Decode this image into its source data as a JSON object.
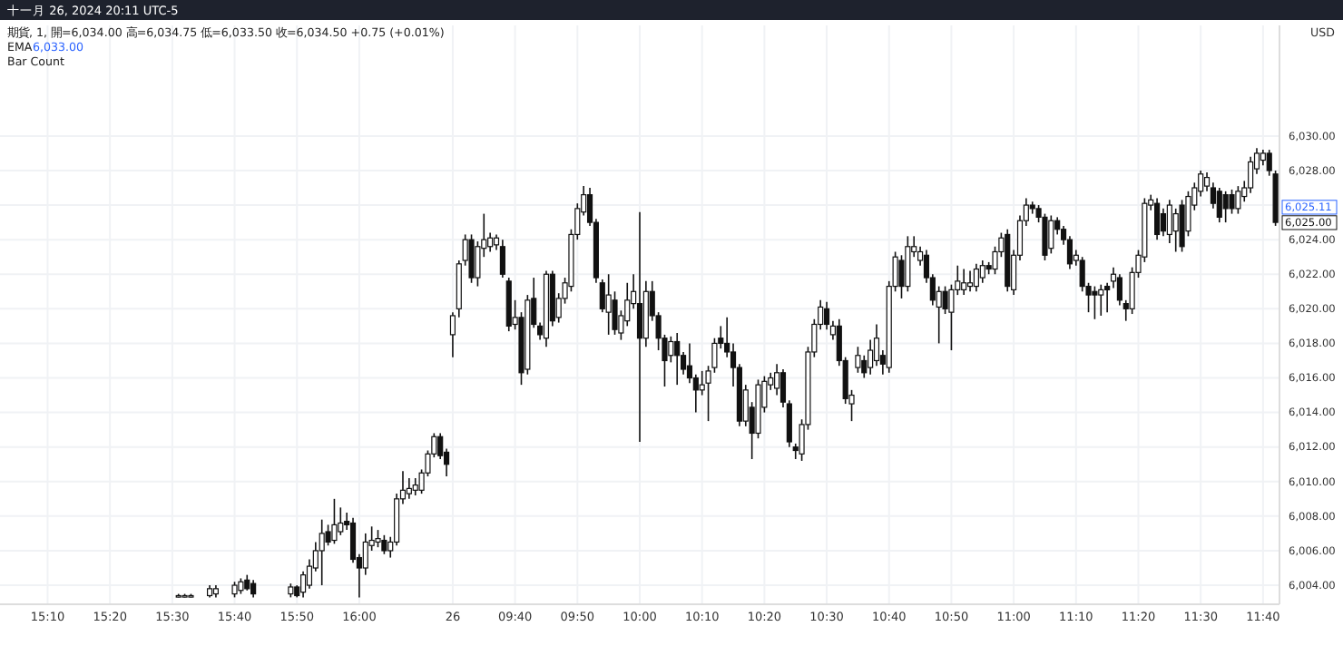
{
  "chart_data": {
    "type": "candlestick",
    "title": "十一月 26, 2024 20:11 UTC-5",
    "subtitle": "期貨, 1, 開=6,034.00 高=6,034.75 低=6,033.50 收=6,034.50 +0.75 (+0.01%)",
    "annotations": [
      "EMA",
      "6,033.00",
      "Bar Count",
      "USD",
      "6,025.11",
      "6,025.00"
    ],
    "categories": [
      null,
      null,
      null,
      null,
      null,
      null,
      null,
      "15:10",
      null,
      null,
      null,
      null,
      null,
      null,
      null,
      null,
      null,
      "15:20",
      null,
      null,
      null,
      null,
      null,
      null,
      null,
      null,
      null,
      "15:30",
      null,
      null,
      null,
      null,
      null,
      null,
      null,
      null,
      null,
      "15:40",
      null,
      null,
      null,
      null,
      null,
      null,
      null,
      null,
      null,
      "15:50",
      null,
      null,
      null,
      null,
      null,
      null,
      null,
      null,
      null,
      "16:00",
      null,
      null,
      null,
      null,
      null,
      null,
      null,
      null,
      null,
      null,
      null,
      null,
      null,
      null,
      "26",
      null,
      null,
      null,
      null,
      null,
      null,
      null,
      null,
      null,
      "09:40",
      null,
      null,
      null,
      null,
      null,
      null,
      null,
      null,
      null,
      "09:50",
      null,
      null,
      null,
      null,
      null,
      null,
      null,
      null,
      null,
      "10:00",
      null,
      null,
      null,
      null,
      null,
      null,
      null,
      null,
      null,
      "10:10",
      null,
      null,
      null,
      null,
      null,
      null,
      null,
      null,
      null,
      "10:20",
      null,
      null,
      null,
      null,
      null,
      null,
      null,
      null,
      null,
      "10:30",
      null,
      null,
      null,
      null,
      null,
      null,
      null,
      null,
      null,
      "10:40",
      null,
      null,
      null,
      null,
      null,
      null,
      null,
      null,
      null,
      "10:50",
      null,
      null,
      null,
      null,
      null,
      null,
      null,
      null,
      null,
      "11:00",
      null,
      null,
      null,
      null,
      null,
      null,
      null,
      null,
      null,
      "11:10",
      null,
      null,
      null,
      null,
      null,
      null,
      null,
      null,
      null,
      "11:20",
      null,
      null,
      null,
      null,
      null,
      null,
      null,
      null,
      null,
      "11:30",
      null,
      null,
      null,
      null,
      null,
      null,
      null,
      null,
      null,
      "11:40",
      null,
      null
    ],
    "ohlc": [
      null,
      null,
      null,
      null,
      null,
      null,
      null,
      null,
      null,
      null,
      null,
      null,
      null,
      null,
      null,
      null,
      null,
      null,
      null,
      null,
      null,
      null,
      null,
      null,
      null,
      null,
      null,
      null,
      [
        6003.4,
        6003.5,
        6003.3,
        6003.4
      ],
      [
        6003.4,
        6003.5,
        6003.3,
        6003.4
      ],
      [
        6003.4,
        6003.5,
        6003.3,
        6003.4
      ],
      null,
      null,
      [
        6003.4,
        6004.0,
        6003.3,
        6003.8
      ],
      [
        6003.5,
        6004.0,
        6003.3,
        6003.8
      ],
      null,
      null,
      [
        6003.5,
        6004.2,
        6003.3,
        6004.0
      ],
      [
        6003.7,
        6004.4,
        6003.5,
        6004.2
      ],
      [
        6004.3,
        6004.6,
        6003.7,
        6003.8
      ],
      [
        6004.1,
        6004.3,
        6003.3,
        6003.5
      ],
      null,
      null,
      null,
      null,
      null,
      [
        6003.5,
        6004.1,
        6003.3,
        6003.9
      ],
      [
        6003.9,
        6004.0,
        6003.3,
        6003.4
      ],
      [
        6003.6,
        6004.8,
        6003.3,
        6004.6
      ],
      [
        6004.0,
        6005.5,
        6003.8,
        6005.1
      ],
      [
        6005.0,
        6006.5,
        6004.8,
        6006.0
      ],
      [
        6006.0,
        6007.8,
        6004.0,
        6007.0
      ],
      [
        6007.1,
        6007.5,
        6006.3,
        6006.5
      ],
      [
        6006.6,
        6009.0,
        6006.4,
        6007.5
      ],
      [
        6007.1,
        6008.5,
        6006.9,
        6007.6
      ],
      [
        6007.7,
        6008.2,
        6007.2,
        6007.5
      ],
      [
        6007.6,
        6007.9,
        6005.3,
        6005.5
      ],
      [
        6005.6,
        6005.8,
        6003.3,
        6005.0
      ],
      [
        6005.0,
        6007.0,
        6004.6,
        6006.5
      ],
      [
        6006.3,
        6007.4,
        6006.0,
        6006.6
      ],
      [
        6006.5,
        6007.2,
        6006.2,
        6006.7
      ],
      [
        6006.6,
        6006.9,
        6005.8,
        6006.0
      ],
      [
        6006.0,
        6006.8,
        6005.6,
        6006.5
      ],
      [
        6006.5,
        6009.3,
        6006.3,
        6009.0
      ],
      [
        6009.0,
        6010.6,
        6008.7,
        6009.5
      ],
      [
        6009.3,
        6010.2,
        6009.0,
        6009.6
      ],
      [
        6009.5,
        6010.2,
        6009.2,
        6009.8
      ],
      [
        6009.5,
        6010.7,
        6009.3,
        6010.5
      ],
      [
        6010.5,
        6011.8,
        6010.3,
        6011.6
      ],
      [
        6011.6,
        6012.8,
        6011.4,
        6012.6
      ],
      [
        6012.6,
        6012.8,
        6011.3,
        6011.5
      ],
      [
        6011.7,
        6011.9,
        6010.3,
        6011.0
      ],
      [
        6018.5,
        6019.8,
        6017.2,
        6019.6
      ],
      [
        6020.0,
        6022.8,
        6019.5,
        6022.6
      ],
      [
        6022.8,
        6024.3,
        6022.5,
        6024.0
      ],
      [
        6024.0,
        6024.3,
        6021.5,
        6021.8
      ],
      [
        6021.8,
        6023.9,
        6021.3,
        6023.6
      ],
      [
        6023.5,
        6025.5,
        6023.0,
        6024.0
      ],
      [
        6023.6,
        6024.4,
        6023.3,
        6024.1
      ],
      [
        6023.7,
        6024.3,
        6023.4,
        6024.1
      ],
      [
        6023.6,
        6024.0,
        6021.8,
        6022.0
      ],
      [
        6021.6,
        6021.8,
        6018.7,
        6019.0
      ],
      [
        6019.1,
        6020.5,
        6018.8,
        6019.5
      ],
      [
        6019.5,
        6019.8,
        6015.6,
        6016.3
      ],
      [
        6016.5,
        6020.8,
        6016.2,
        6020.5
      ],
      [
        6020.6,
        6021.8,
        6018.9,
        6019.1
      ],
      [
        6019.0,
        6019.2,
        6018.2,
        6018.5
      ],
      [
        6018.3,
        6022.2,
        6017.8,
        6022.0
      ],
      [
        6022.0,
        6022.2,
        6019.0,
        6019.3
      ],
      [
        6019.5,
        6020.9,
        6019.2,
        6020.6
      ],
      [
        6020.6,
        6021.8,
        6020.3,
        6021.5
      ],
      [
        6021.3,
        6024.6,
        6021.0,
        6024.3
      ],
      [
        6024.3,
        6026.1,
        6024.0,
        6025.8
      ],
      [
        6025.6,
        6027.1,
        6025.4,
        6026.6
      ],
      [
        6026.6,
        6027.0,
        6024.8,
        6025.0
      ],
      [
        6025.0,
        6025.2,
        6021.5,
        6021.8
      ],
      [
        6021.5,
        6021.7,
        6019.8,
        6020.0
      ],
      [
        6019.8,
        6022.0,
        6018.5,
        6020.8
      ],
      [
        6020.5,
        6021.0,
        6018.5,
        6018.8
      ],
      [
        6018.6,
        6019.9,
        6018.2,
        6019.6
      ],
      [
        6019.3,
        6021.5,
        6019.0,
        6020.5
      ],
      [
        6020.3,
        6022.0,
        6020.0,
        6021.0
      ],
      [
        6020.3,
        6025.6,
        6012.3,
        6018.3
      ],
      [
        6018.3,
        6021.6,
        6017.8,
        6021.0
      ],
      [
        6021.0,
        6021.6,
        6019.3,
        6019.6
      ],
      [
        6019.6,
        6019.8,
        6017.6,
        6018.3
      ],
      [
        6018.3,
        6018.5,
        6015.5,
        6017.0
      ],
      [
        6017.3,
        6018.4,
        6016.9,
        6018.1
      ],
      [
        6018.1,
        6018.6,
        6015.6,
        6017.3
      ],
      [
        6017.3,
        6017.5,
        6016.2,
        6016.5
      ],
      [
        6016.7,
        6018.0,
        6015.7,
        6016.0
      ],
      [
        6016.0,
        6016.2,
        6014.0,
        6015.3
      ],
      [
        6015.3,
        6016.4,
        6015.0,
        6015.6
      ],
      [
        6015.7,
        6016.7,
        6013.5,
        6016.4
      ],
      [
        6016.6,
        6018.3,
        6016.3,
        6018.0
      ],
      [
        6018.3,
        6019.0,
        6017.7,
        6018.0
      ],
      [
        6018.0,
        6019.5,
        6017.2,
        6017.5
      ],
      [
        6017.5,
        6018.0,
        6015.5,
        6016.6
      ],
      [
        6016.6,
        6016.8,
        6013.2,
        6013.5
      ],
      [
        6013.5,
        6015.6,
        6013.2,
        6015.3
      ],
      [
        6014.3,
        6014.6,
        6011.3,
        6012.8
      ],
      [
        6012.8,
        6015.9,
        6012.5,
        6015.6
      ],
      [
        6014.3,
        6016.1,
        6014.0,
        6015.8
      ],
      [
        6015.6,
        6016.3,
        6015.3,
        6016.0
      ],
      [
        6015.4,
        6016.8,
        6015.0,
        6016.3
      ],
      [
        6016.3,
        6016.5,
        6014.3,
        6014.6
      ],
      [
        6014.5,
        6014.7,
        6012.0,
        6012.3
      ],
      [
        6012.0,
        6012.2,
        6011.3,
        6011.8
      ],
      [
        6011.6,
        6013.6,
        6011.2,
        6013.3
      ],
      [
        6013.3,
        6017.8,
        6013.0,
        6017.5
      ],
      [
        6017.5,
        6019.4,
        6017.2,
        6019.1
      ],
      [
        6019.1,
        6020.5,
        6018.8,
        6020.1
      ],
      [
        6020.0,
        6020.4,
        6018.8,
        6019.1
      ],
      [
        6018.5,
        6019.3,
        6018.2,
        6019.0
      ],
      [
        6019.0,
        6019.4,
        6016.7,
        6017.0
      ],
      [
        6017.0,
        6017.2,
        6014.5,
        6014.8
      ],
      [
        6014.5,
        6015.3,
        6013.5,
        6015.0
      ],
      [
        6016.6,
        6017.8,
        6016.3,
        6017.3
      ],
      [
        6017.0,
        6017.3,
        6016.0,
        6016.3
      ],
      [
        6016.6,
        6018.2,
        6016.2,
        6017.6
      ],
      [
        6017.0,
        6019.1,
        6016.7,
        6018.3
      ],
      [
        6017.3,
        6017.6,
        6016.2,
        6016.8
      ],
      [
        6016.6,
        6021.6,
        6016.3,
        6021.3
      ],
      [
        6021.3,
        6023.3,
        6021.0,
        6023.0
      ],
      [
        6022.8,
        6023.1,
        6020.6,
        6021.3
      ],
      [
        6021.3,
        6024.2,
        6021.0,
        6023.6
      ],
      [
        6023.3,
        6024.2,
        6023.0,
        6023.6
      ],
      [
        6022.8,
        6023.6,
        6022.5,
        6023.3
      ],
      [
        6023.1,
        6023.4,
        6021.5,
        6021.8
      ],
      [
        6021.8,
        6022.0,
        6020.2,
        6020.5
      ],
      [
        6020.1,
        6021.3,
        6018.0,
        6021.0
      ],
      [
        6021.0,
        6021.3,
        6019.7,
        6020.0
      ],
      [
        6019.8,
        6021.4,
        6017.6,
        6021.1
      ],
      [
        6021.1,
        6022.5,
        6020.8,
        6021.6
      ],
      [
        6021.1,
        6022.3,
        6020.8,
        6021.5
      ],
      [
        6021.3,
        6022.2,
        6021.0,
        6021.5
      ],
      [
        6021.3,
        6022.6,
        6021.0,
        6022.3
      ],
      [
        6021.8,
        6022.8,
        6021.5,
        6022.5
      ],
      [
        6022.5,
        6022.7,
        6022.0,
        6022.3
      ],
      [
        6022.3,
        6023.6,
        6022.0,
        6023.3
      ],
      [
        6023.3,
        6024.4,
        6023.0,
        6024.1
      ],
      [
        6024.3,
        6024.6,
        6021.0,
        6021.3
      ],
      [
        6021.1,
        6023.4,
        6020.8,
        6023.1
      ],
      [
        6023.1,
        6025.4,
        6022.8,
        6025.1
      ],
      [
        6025.1,
        6026.4,
        6024.8,
        6026.0
      ],
      [
        6026.0,
        6026.2,
        6025.5,
        6025.8
      ],
      [
        6025.8,
        6026.0,
        6025.0,
        6025.3
      ],
      [
        6025.3,
        6025.5,
        6022.8,
        6023.1
      ],
      [
        6023.5,
        6025.4,
        6023.2,
        6025.1
      ],
      [
        6025.1,
        6025.3,
        6024.3,
        6024.6
      ],
      [
        6024.6,
        6024.8,
        6023.7,
        6024.0
      ],
      [
        6024.0,
        6024.2,
        6022.3,
        6022.6
      ],
      [
        6022.8,
        6023.4,
        6022.5,
        6023.1
      ],
      [
        6022.8,
        6023.0,
        6021.0,
        6021.3
      ],
      [
        6021.3,
        6021.5,
        6019.8,
        6020.8
      ],
      [
        6021.0,
        6021.3,
        6019.4,
        6020.8
      ],
      [
        6020.8,
        6021.4,
        6019.6,
        6021.1
      ],
      [
        6021.3,
        6021.5,
        6019.8,
        6021.1
      ],
      [
        6021.6,
        6022.4,
        6021.2,
        6022.0
      ],
      [
        6021.8,
        6022.0,
        6020.2,
        6020.5
      ],
      [
        6020.3,
        6020.5,
        6019.3,
        6020.0
      ],
      [
        6020.0,
        6022.4,
        6019.7,
        6022.1
      ],
      [
        6022.1,
        6023.4,
        6021.8,
        6023.1
      ],
      [
        6023.0,
        6026.4,
        6022.7,
        6026.1
      ],
      [
        6026.0,
        6026.6,
        6025.7,
        6026.3
      ],
      [
        6026.1,
        6026.4,
        6024.0,
        6024.3
      ],
      [
        6025.5,
        6025.8,
        6024.2,
        6024.5
      ],
      [
        6024.3,
        6026.3,
        6023.8,
        6026.0
      ],
      [
        6024.5,
        6025.8,
        6023.3,
        6025.5
      ],
      [
        6026.0,
        6026.3,
        6023.3,
        6023.6
      ],
      [
        6024.5,
        6026.8,
        6024.2,
        6026.5
      ],
      [
        6026.0,
        6027.3,
        6025.7,
        6027.0
      ],
      [
        6026.8,
        6028.0,
        6026.5,
        6027.8
      ],
      [
        6027.1,
        6027.9,
        6026.8,
        6027.6
      ],
      [
        6027.0,
        6027.3,
        6025.8,
        6026.1
      ],
      [
        6026.8,
        6027.0,
        6025.0,
        6025.3
      ],
      [
        6026.6,
        6026.8,
        6025.0,
        6025.8
      ],
      [
        6026.6,
        6026.9,
        6025.5,
        6025.8
      ],
      [
        6025.8,
        6027.1,
        6025.5,
        6026.8
      ],
      [
        6026.5,
        6027.4,
        6026.2,
        6027.0
      ],
      [
        6027.0,
        6028.8,
        6026.7,
        6028.5
      ],
      [
        6028.1,
        6029.3,
        6027.8,
        6029.0
      ],
      [
        6028.6,
        6029.2,
        6028.3,
        6029.0
      ],
      [
        6029.0,
        6029.2,
        6027.7,
        6028.0
      ],
      [
        6027.8,
        6028.0,
        6024.8,
        6025.0
      ]
    ],
    "ylim": [
      6002.9,
      6036.4
    ],
    "yticks": [
      {
        "value": 6004,
        "label": "6,004.00"
      },
      {
        "value": 6006,
        "label": "6,006.00"
      },
      {
        "value": 6008,
        "label": "6,008.00"
      },
      {
        "value": 6010,
        "label": "6,010.00"
      },
      {
        "value": 6012,
        "label": "6,012.00"
      },
      {
        "value": 6014,
        "label": "6,014.00"
      },
      {
        "value": 6016,
        "label": "6,016.00"
      },
      {
        "value": 6018,
        "label": "6,018.00"
      },
      {
        "value": 6020,
        "label": "6,020.00"
      },
      {
        "value": 6022,
        "label": "6,022.00"
      },
      {
        "value": 6024,
        "label": "6,024.00"
      },
      {
        "value": 6026,
        "label": null
      },
      {
        "value": 6028,
        "label": "6,028.00"
      },
      {
        "value": 6030,
        "label": "6,030.00"
      }
    ],
    "grid": true
  }
}
